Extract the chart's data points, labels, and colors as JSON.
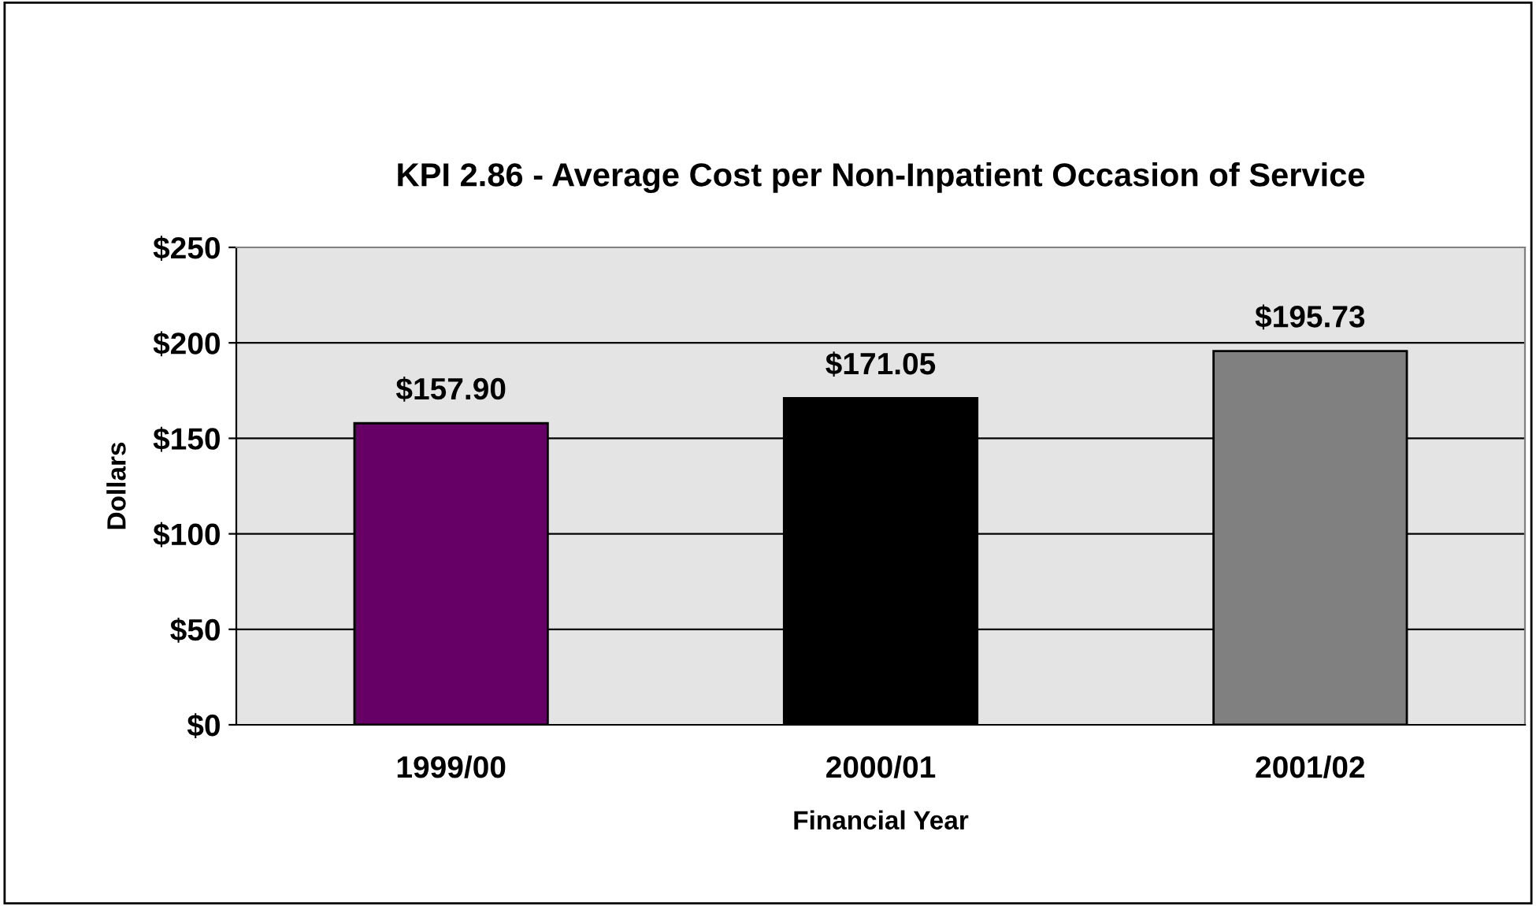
{
  "chart_data": {
    "type": "bar",
    "title": "KPI 2.86 - Average Cost per Non-Inpatient Occasion of Service",
    "xlabel": "Financial Year",
    "ylabel": "Dollars",
    "categories": [
      "1999/00",
      "2000/01",
      "2001/02"
    ],
    "values": [
      157.9,
      171.05,
      195.73
    ],
    "colors": [
      "#660066",
      "#000000",
      "#808080"
    ],
    "value_labels": [
      "$157.90",
      "$171.05",
      "$195.73"
    ],
    "ylim": [
      0,
      250
    ],
    "yticks": [
      {
        "value": 0,
        "label": "$0"
      },
      {
        "value": 50,
        "label": "$50"
      },
      {
        "value": 100,
        "label": "$100"
      },
      {
        "value": 150,
        "label": "$150"
      },
      {
        "value": 200,
        "label": "$200"
      },
      {
        "value": 250,
        "label": "$250"
      }
    ],
    "grid": "y",
    "legend": false
  }
}
